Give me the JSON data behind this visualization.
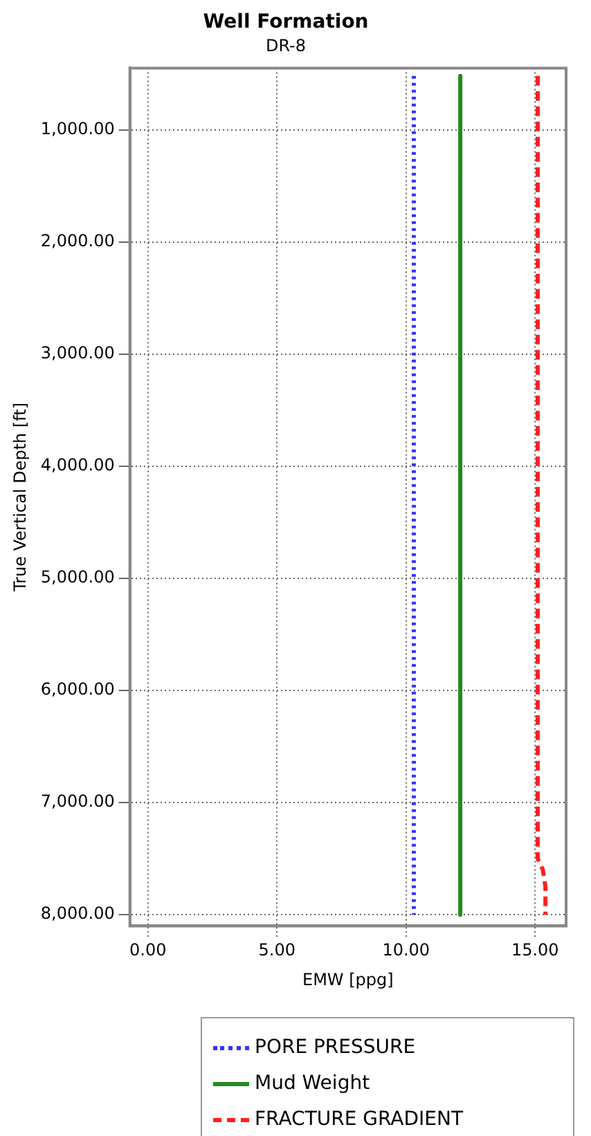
{
  "chart_data": {
    "type": "line",
    "title": "Well Formation",
    "subtitle": "DR-8",
    "xlabel": "EMW [ppg]",
    "ylabel": "True Vertical Depth [ft]",
    "xlim": [
      -0.7,
      16.2
    ],
    "ylim": [
      8100,
      450
    ],
    "xticks": [
      {
        "value": 0,
        "label": "0.00"
      },
      {
        "value": 5,
        "label": "5.00"
      },
      {
        "value": 10,
        "label": "10.00"
      },
      {
        "value": 15,
        "label": "15.00"
      }
    ],
    "yticks": [
      {
        "value": 1000,
        "label": "1,000.00"
      },
      {
        "value": 2000,
        "label": "2,000.00"
      },
      {
        "value": 3000,
        "label": "3,000.00"
      },
      {
        "value": 4000,
        "label": "4,000.00"
      },
      {
        "value": 5000,
        "label": "5,000.00"
      },
      {
        "value": 6000,
        "label": "6,000.00"
      },
      {
        "value": 7000,
        "label": "7,000.00"
      },
      {
        "value": 8000,
        "label": "8,000.00"
      }
    ],
    "grid": true,
    "legend": "bottom",
    "marker": "none",
    "series": [
      {
        "name": "PORE PRESSURE",
        "color": "#3333ff",
        "line_style": "dotted",
        "x": [
          10.3,
          10.3
        ],
        "values": [
          520,
          8000
        ]
      },
      {
        "name": "Mud Weight",
        "color": "#228b22",
        "line_style": "solid",
        "x": [
          12.1,
          12.1
        ],
        "values": [
          520,
          8000
        ]
      },
      {
        "name": "FRACTURE GRADIENT",
        "color": "#ff2020",
        "line_style": "dashed",
        "x": [
          15.1,
          15.1,
          15.3,
          15.4,
          15.4
        ],
        "values": [
          520,
          7500,
          7600,
          7750,
          8000
        ]
      }
    ]
  }
}
